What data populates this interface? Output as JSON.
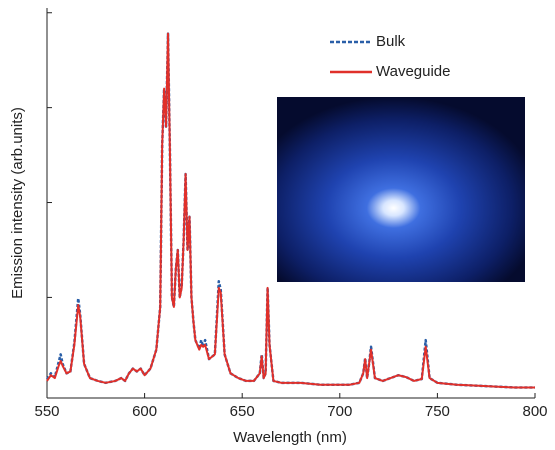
{
  "chart_data": {
    "type": "line",
    "xlabel": "Wavelength (nm)",
    "ylabel": "Emission intensity (arb.units)",
    "x": [
      550,
      552,
      554,
      556,
      557,
      558,
      560,
      562,
      564,
      566,
      567,
      569,
      572,
      576,
      580,
      585,
      588,
      590,
      592,
      594,
      596,
      598,
      600,
      603,
      606,
      608,
      609,
      610,
      611,
      612,
      613,
      614,
      615,
      616,
      617,
      618,
      619,
      620,
      621,
      622,
      623,
      624,
      625,
      626,
      628,
      629,
      630,
      631,
      633,
      636,
      638,
      639,
      641,
      644,
      648,
      652,
      656,
      659,
      660,
      661,
      662,
      663,
      664,
      666,
      670,
      680,
      690,
      700,
      705,
      710,
      712,
      713,
      714,
      715,
      716,
      718,
      722,
      726,
      730,
      734,
      738,
      742,
      744,
      746,
      750,
      760,
      770,
      780,
      790,
      800
    ],
    "series": [
      {
        "name": "Bulk",
        "color": "#2a5fa8",
        "dash": true,
        "values": [
          0.14,
          0.2,
          0.16,
          0.32,
          0.4,
          0.3,
          0.2,
          0.22,
          0.52,
          0.99,
          0.82,
          0.3,
          0.15,
          0.12,
          0.1,
          0.12,
          0.15,
          0.12,
          0.2,
          0.25,
          0.22,
          0.25,
          0.18,
          0.25,
          0.45,
          0.9,
          2.6,
          3.2,
          2.8,
          3.78,
          2.5,
          1.0,
          0.9,
          1.3,
          1.5,
          1.0,
          1.12,
          1.6,
          2.3,
          1.5,
          1.85,
          1.0,
          0.75,
          0.55,
          0.46,
          0.55,
          0.48,
          0.55,
          0.35,
          0.4,
          1.17,
          1.08,
          0.4,
          0.2,
          0.15,
          0.12,
          0.12,
          0.2,
          0.4,
          0.15,
          0.2,
          1.1,
          0.5,
          0.12,
          0.1,
          0.1,
          0.08,
          0.08,
          0.08,
          0.1,
          0.2,
          0.36,
          0.15,
          0.3,
          0.48,
          0.15,
          0.12,
          0.15,
          0.18,
          0.16,
          0.12,
          0.14,
          0.55,
          0.15,
          0.1,
          0.08,
          0.07,
          0.06,
          0.05,
          0.05
        ]
      },
      {
        "name": "Waveguide",
        "color": "#e0302a",
        "dash": false,
        "values": [
          0.12,
          0.18,
          0.15,
          0.28,
          0.33,
          0.28,
          0.2,
          0.22,
          0.5,
          0.92,
          0.8,
          0.3,
          0.15,
          0.12,
          0.1,
          0.12,
          0.15,
          0.12,
          0.2,
          0.25,
          0.22,
          0.25,
          0.18,
          0.25,
          0.45,
          0.9,
          2.6,
          3.2,
          2.8,
          3.78,
          2.5,
          1.0,
          0.9,
          1.3,
          1.5,
          1.0,
          1.1,
          1.6,
          2.3,
          1.5,
          1.85,
          1.0,
          0.75,
          0.55,
          0.45,
          0.5,
          0.48,
          0.5,
          0.35,
          0.4,
          1.1,
          1.05,
          0.4,
          0.2,
          0.15,
          0.12,
          0.12,
          0.2,
          0.38,
          0.15,
          0.2,
          1.1,
          0.5,
          0.12,
          0.1,
          0.1,
          0.08,
          0.08,
          0.08,
          0.1,
          0.2,
          0.35,
          0.15,
          0.3,
          0.45,
          0.15,
          0.12,
          0.15,
          0.18,
          0.16,
          0.12,
          0.14,
          0.48,
          0.15,
          0.1,
          0.08,
          0.07,
          0.06,
          0.05,
          0.05
        ]
      }
    ],
    "xlim": [
      550,
      800
    ],
    "xticks": [
      550,
      600,
      650,
      700,
      750,
      800
    ],
    "ylim": [
      -0.06,
      4.05
    ],
    "yticks": [
      1,
      2,
      3,
      4
    ],
    "legend": "upper right"
  }
}
